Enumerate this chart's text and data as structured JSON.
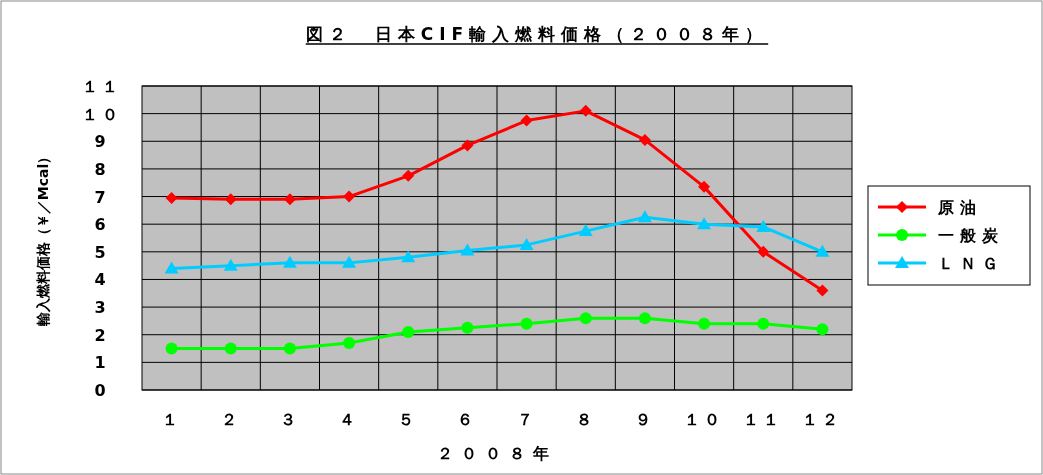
{
  "chart_data": {
    "type": "line",
    "title": "図２　日本CIF輸入燃料価格（２００８年）",
    "xlabel": "２００８年",
    "ylabel": "輸入燃料価格（￥／Mcal）",
    "categories": [
      "１",
      "２",
      "３",
      "４",
      "５",
      "６",
      "７",
      "８",
      "９",
      "１０",
      "１１",
      "１２"
    ],
    "ylim": [
      0,
      11
    ],
    "yticks": [
      0,
      1,
      2,
      3,
      4,
      5,
      6,
      7,
      8,
      9,
      {
        "value": 10,
        "label": "１０"
      },
      {
        "value": 11,
        "label": "１１"
      }
    ],
    "grid": true,
    "legend": "right",
    "line_style": "solid",
    "series": [
      {
        "name": "原油",
        "color": "#ff0000",
        "marker": "diamond",
        "values": [
          6.95,
          6.9,
          6.9,
          7.0,
          7.75,
          8.85,
          9.75,
          10.1,
          9.05,
          7.35,
          5.0,
          3.6
        ]
      },
      {
        "name": "一般炭",
        "color": "#00ff00",
        "marker": "circle",
        "values": [
          1.5,
          1.5,
          1.5,
          1.7,
          2.1,
          2.25,
          2.4,
          2.6,
          2.6,
          2.4,
          2.4,
          2.2
        ]
      },
      {
        "name": "ＬＮＧ",
        "color": "#00ccff",
        "marker": "triangle",
        "values": [
          4.4,
          4.5,
          4.6,
          4.6,
          4.8,
          5.05,
          5.25,
          5.75,
          6.25,
          6.0,
          5.9,
          5.0
        ]
      }
    ]
  }
}
